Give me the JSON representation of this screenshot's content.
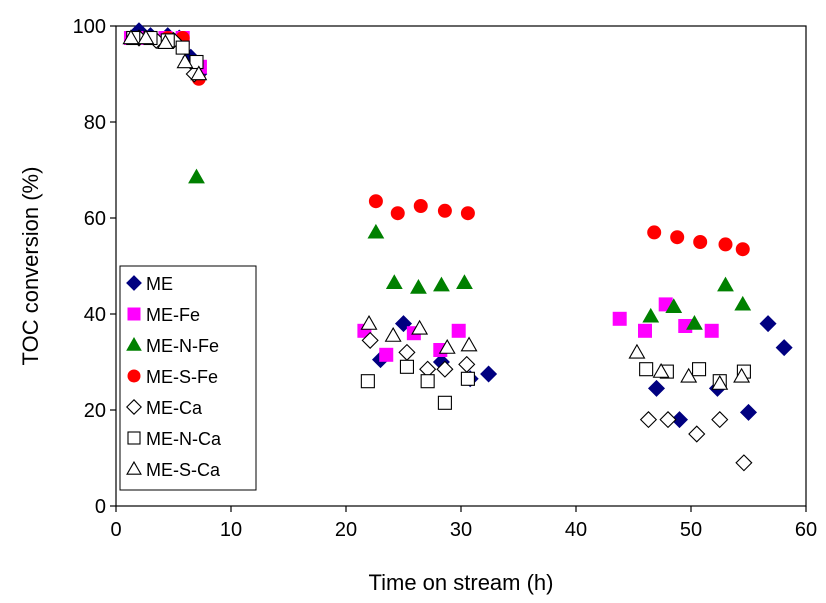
{
  "chart_data": {
    "type": "scatter",
    "title": "",
    "xlabel": "Time on stream (h)",
    "ylabel": "TOC conversion (%)",
    "xlim": [
      0,
      60
    ],
    "ylim": [
      0,
      100
    ],
    "xticks": [
      0,
      10,
      20,
      30,
      40,
      50,
      60
    ],
    "yticks": [
      0,
      20,
      40,
      60,
      80,
      100
    ],
    "grid": false,
    "legend_position": "left",
    "series": [
      {
        "name": "ME",
        "marker": "diamond-filled",
        "color": "#000080",
        "x": [
          2.0,
          3.0,
          4.5,
          5.5,
          6.5,
          7.2,
          23.0,
          25.0,
          28.3,
          30.8,
          32.4,
          47.0,
          49.0,
          52.3,
          55.0,
          56.7,
          58.1
        ],
        "y": [
          99.0,
          98.0,
          98.0,
          97.5,
          93.5,
          90.0,
          30.5,
          38.0,
          30.0,
          26.5,
          27.5,
          24.5,
          18.0,
          24.5,
          19.5,
          38.0,
          33.0
        ]
      },
      {
        "name": "ME-Fe",
        "marker": "square-filled",
        "color": "#FF00FF",
        "x": [
          1.3,
          2.8,
          4.3,
          5.8,
          7.3,
          21.6,
          23.5,
          25.9,
          28.2,
          29.8,
          43.8,
          46.0,
          47.8,
          49.5,
          51.8
        ],
        "y": [
          97.5,
          97.5,
          97.5,
          97.5,
          91.5,
          36.5,
          31.5,
          36.0,
          32.5,
          36.5,
          39.0,
          36.5,
          42.0,
          37.5,
          36.5
        ],
        "comment": ""
      },
      {
        "name": "ME-N-Fe",
        "marker": "triangle-filled",
        "color": "#008000",
        "x": [
          7.0,
          22.6,
          24.2,
          26.3,
          28.3,
          30.3,
          46.5,
          48.5,
          50.3,
          53.0,
          54.5
        ],
        "y": [
          68.5,
          57.0,
          46.5,
          45.5,
          46.0,
          46.5,
          39.5,
          41.5,
          38.0,
          46.0,
          42.0
        ]
      },
      {
        "name": "ME-S-Fe",
        "marker": "circle-filled",
        "color": "#FF0000",
        "x": [
          3.0,
          4.5,
          5.8,
          7.2,
          22.6,
          24.5,
          26.5,
          28.6,
          30.6,
          46.8,
          48.8,
          50.8,
          53.0,
          54.5
        ],
        "y": [
          97.5,
          97.5,
          97.5,
          89.0,
          63.5,
          61.0,
          62.5,
          61.5,
          61.0,
          57.0,
          56.0,
          55.0,
          54.5,
          53.5
        ]
      },
      {
        "name": "ME-Ca",
        "marker": "diamond-open",
        "color": "#000000",
        "x": [
          2.0,
          3.5,
          5.0,
          6.8,
          22.1,
          25.3,
          27.1,
          28.6,
          30.5,
          46.3,
          48.0,
          50.5,
          52.5,
          54.6
        ],
        "y": [
          97.5,
          97.0,
          97.0,
          90.0,
          34.5,
          32.0,
          28.5,
          28.5,
          29.5,
          18.0,
          18.0,
          15.0,
          18.0,
          9.0
        ]
      },
      {
        "name": "ME-N-Ca",
        "marker": "square-open",
        "color": "#000000",
        "x": [
          1.5,
          3.0,
          4.5,
          5.8,
          7.0,
          21.9,
          25.3,
          27.1,
          28.6,
          30.6,
          46.1,
          47.9,
          50.7,
          52.5,
          54.6
        ],
        "y": [
          97.5,
          97.5,
          97.0,
          95.5,
          92.5,
          26.0,
          29.0,
          26.0,
          21.5,
          26.5,
          28.5,
          28.0,
          28.5,
          26.0,
          28.0
        ]
      },
      {
        "name": "ME-S-Ca",
        "marker": "triangle-open",
        "color": "#000000",
        "x": [
          1.3,
          2.6,
          4.3,
          6.0,
          7.2,
          22.0,
          24.1,
          26.4,
          28.8,
          30.7,
          45.3,
          47.4,
          49.8,
          52.5,
          54.4
        ],
        "y": [
          97.5,
          97.5,
          96.5,
          92.5,
          90.0,
          38.0,
          35.5,
          37.0,
          33.0,
          33.5,
          32.0,
          28.0,
          27.0,
          25.5,
          27.0
        ]
      }
    ]
  }
}
